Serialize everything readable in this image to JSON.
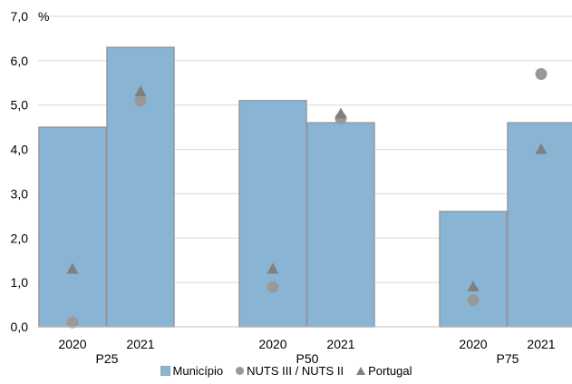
{
  "chart_data": {
    "type": "bar",
    "ylabel": "%",
    "ylim": [
      0,
      7
    ],
    "yticks": [
      "0,0",
      "1,0",
      "2,0",
      "3,0",
      "4,0",
      "5,0",
      "6,0",
      "7,0"
    ],
    "ytick_values": [
      0,
      1,
      2,
      3,
      4,
      5,
      6,
      7
    ],
    "grid": true,
    "legend_position": "bottom",
    "groups": [
      "P25",
      "P50",
      "P75"
    ],
    "categories": [
      "2020",
      "2021",
      "2020",
      "2021",
      "2020",
      "2021"
    ],
    "category_group": [
      0,
      0,
      1,
      1,
      2,
      2
    ],
    "series": [
      {
        "name": "Município",
        "kind": "bar",
        "color": "#8ab4d4",
        "values": [
          4.5,
          6.3,
          5.1,
          4.6,
          2.6,
          4.6
        ]
      },
      {
        "name": "NUTS III / NUTS II",
        "kind": "circle",
        "color": "#999999",
        "values": [
          0.1,
          5.1,
          0.9,
          4.7,
          0.6,
          5.7
        ]
      },
      {
        "name": "Portugal",
        "kind": "triangle",
        "color": "#808080",
        "values": [
          1.3,
          5.3,
          1.3,
          4.8,
          0.9,
          4.0
        ]
      }
    ]
  }
}
